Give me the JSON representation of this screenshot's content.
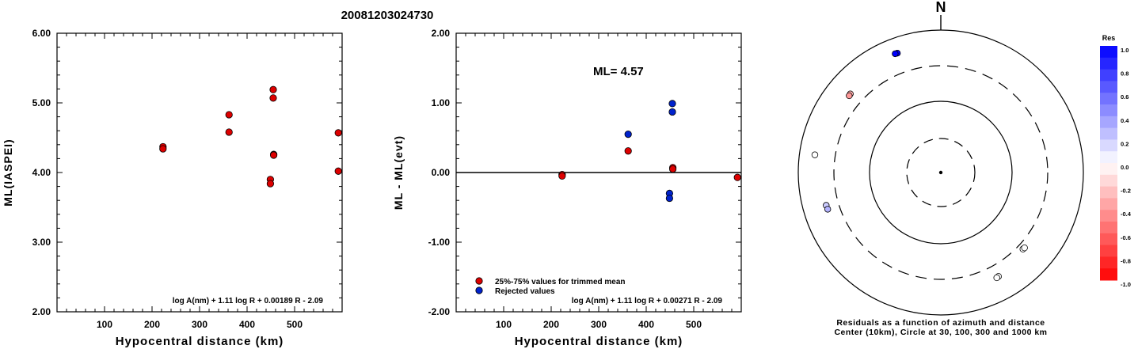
{
  "title": "20081203024730",
  "chart_data": [
    {
      "type": "scatter",
      "name": "ml-vs-distance",
      "xlabel": "Hypocentral distance (km)",
      "ylabel": "ML(IASPEI)",
      "xlim": [
        0,
        600
      ],
      "ylim": [
        2.0,
        6.0
      ],
      "x_ticks": [
        100,
        200,
        300,
        400,
        500
      ],
      "y_ticks": [
        "2.00",
        "3.00",
        "4.00",
        "5.00",
        "6.00"
      ],
      "formula": "log A(nm) + 1.11 log R + 0.00189 R - 2.09",
      "series": [
        {
          "color": "#dd0000",
          "points": [
            [
              223,
              4.37
            ],
            [
              223,
              4.34
            ],
            [
              362,
              4.83
            ],
            [
              362,
              4.58
            ],
            [
              449,
              3.9
            ],
            [
              449,
              3.84
            ],
            [
              455,
              5.19
            ],
            [
              455,
              5.07
            ],
            [
              456,
              4.26
            ],
            [
              456,
              4.25
            ],
            [
              592,
              4.57
            ],
            [
              592,
              4.02
            ]
          ]
        }
      ]
    },
    {
      "type": "scatter",
      "name": "ml-residual-vs-distance",
      "xlabel": "Hypocentral distance (km)",
      "ylabel": "ML - ML(evt)",
      "xlim": [
        0,
        600
      ],
      "ylim": [
        -2.0,
        2.0
      ],
      "x_ticks": [
        100,
        200,
        300,
        400,
        500
      ],
      "y_ticks": [
        "-2.00",
        "-1.00",
        "0.00",
        "1.00",
        "2.00"
      ],
      "annotation": "ML= 4.57",
      "formula": "log A(nm) + 1.11 log R + 0.00271 R - 2.09",
      "legend": [
        {
          "label": "25%-75% values for trimmed mean",
          "color": "#dd0000"
        },
        {
          "label": "Rejected values",
          "color": "#0022cc"
        }
      ],
      "series": [
        {
          "color": "#dd0000",
          "points": [
            [
              223,
              -0.03
            ],
            [
              223,
              -0.05
            ],
            [
              362,
              0.31
            ],
            [
              456,
              0.07
            ],
            [
              456,
              0.05
            ],
            [
              592,
              -0.07
            ]
          ]
        },
        {
          "color": "#0022cc",
          "points": [
            [
              362,
              0.55
            ],
            [
              449,
              -0.3
            ],
            [
              449,
              -0.37
            ],
            [
              455,
              0.99
            ],
            [
              455,
              0.87
            ]
          ]
        }
      ]
    },
    {
      "type": "polar-scatter",
      "name": "residual-map",
      "north_label": "N",
      "caption_line1": "Residuals as a function of azimuth and distance",
      "caption_line2": "Center (10km), Circle at 30, 100, 300 and 1000 km",
      "colorbar_title": "Res",
      "colorbar_ticks": [
        "1.0",
        "0.8",
        "0.6",
        "0.4",
        "0.2",
        "0.0",
        "-0.2",
        "-0.4",
        "-0.6",
        "-0.8",
        "-1.0"
      ],
      "stations": [
        {
          "azimuth": 340,
          "distance_km": 593,
          "residual": 1.0
        },
        {
          "azimuth": 339,
          "distance_km": 598,
          "residual": 1.0
        },
        {
          "azimuth": 311,
          "distance_km": 465,
          "residual": -0.3
        },
        {
          "azimuth": 310,
          "distance_km": 460,
          "residual": -0.4
        },
        {
          "azimuth": 278,
          "distance_km": 595,
          "residual": 0.0
        },
        {
          "azimuth": 254,
          "distance_km": 455,
          "residual": 0.2
        },
        {
          "azimuth": 252,
          "distance_km": 450,
          "residual": 0.3
        },
        {
          "azimuth": 133,
          "distance_km": 360,
          "residual": 0.0
        },
        {
          "azimuth": 132,
          "distance_km": 364,
          "residual": 0.0
        },
        {
          "azimuth": 151,
          "distance_km": 450,
          "residual": 0.0
        },
        {
          "azimuth": 152,
          "distance_km": 455,
          "residual": 0.0
        }
      ]
    }
  ]
}
